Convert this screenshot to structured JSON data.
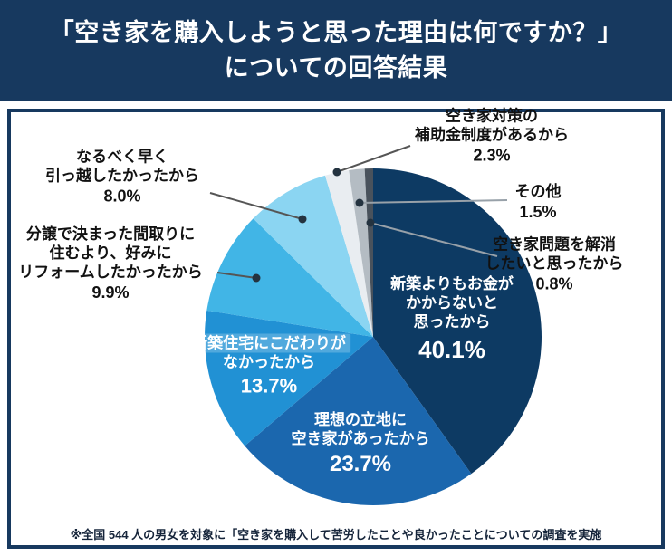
{
  "header": {
    "title_line1": "「空き家を購入しようと思った理由は何ですか？」",
    "title_line2": "についての回答結果"
  },
  "footnote": "※全国 544 人の男女を対象に「空き家を購入して苦労したことや良かったことについての調査を実施",
  "colors": {
    "header_bg": "#17395f",
    "panel_border": "#17395f",
    "leader_dot": "#243340"
  },
  "chart_data": {
    "type": "pie",
    "title": "空き家を購入しようと思った理由は何ですか？ についての回答結果",
    "unit": "%",
    "sample_size": 544,
    "rotation": "clockwise",
    "start_angle": "top",
    "slices": [
      {
        "label": "新築よりもお金がかからないと思ったから",
        "value": 40.1,
        "value_label": "40.1%",
        "color": "#0d3a63",
        "label_lines": [
          "新築よりもお金が",
          "かからないと",
          "思ったから"
        ]
      },
      {
        "label": "理想の立地に空き家があったから",
        "value": 23.7,
        "value_label": "23.7%",
        "color": "#1b67ae",
        "label_lines": [
          "理想の立地に",
          "空き家があったから"
        ]
      },
      {
        "label": "新築住宅にこだわりがなかったから",
        "value": 13.7,
        "value_label": "13.7%",
        "color": "#2191d4",
        "label_lines": [
          "新築住宅にこだわりが",
          "なかったから"
        ]
      },
      {
        "label": "分譲で決まった間取りに住むより、好みにリフォームしたかったから",
        "value": 9.9,
        "value_label": "9.9%",
        "color": "#41b5e6",
        "label_lines": [
          "分譲で決まった間取りに",
          "住むより、好みに",
          "リフォームしたかったから"
        ]
      },
      {
        "label": "なるべく早く引っ越したかったから",
        "value": 8.0,
        "value_label": "8.0%",
        "color": "#8bd5f2",
        "label_lines": [
          "なるべく早く",
          "引っ越したかったから"
        ]
      },
      {
        "label": "空き家対策の補助金制度があるから",
        "value": 2.3,
        "value_label": "2.3%",
        "color": "#e9edf1",
        "label_lines": [
          "空き家対策の",
          "補助金制度があるから"
        ]
      },
      {
        "label": "その他",
        "value": 1.5,
        "value_label": "1.5%",
        "color": "#b4bcc3",
        "label_lines": [
          "その他"
        ]
      },
      {
        "label": "空き家問題を解消したいと思ったから",
        "value": 0.8,
        "value_label": "0.8%",
        "color": "#49525c",
        "label_lines": [
          "空き家問題を解消",
          "したいと思ったから"
        ]
      }
    ]
  }
}
